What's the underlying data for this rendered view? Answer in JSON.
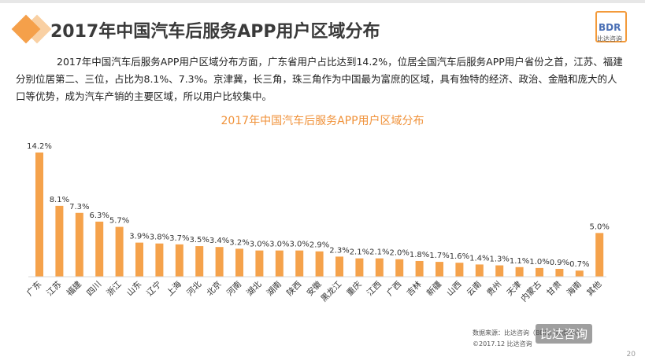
{
  "header": {
    "title": "2017年中国汽车后服务APP用户区域分布",
    "logo_text": "BDR",
    "logo_sub": "比达咨询"
  },
  "paragraph": "2017年中国汽车后服务APP用户区域分布方面，广东省用户占比达到14.2%，位居全国汽车后服务APP用户省份之首，江苏、福建分别位居第二、三位，占比为8.1%、7.3%。京津冀，长三角，珠三角作为中国最为富庶的区域，具有独特的经济、政治、金融和庞大的人口等优势，成为汽车产销的主要区域，所以用户比较集中。",
  "chart_data": {
    "type": "bar",
    "title": "2017年中国汽车后服务APP用户区域分布",
    "categories": [
      "广东",
      "江苏",
      "福建",
      "四川",
      "浙江",
      "山东",
      "辽宁",
      "上海",
      "河北",
      "北京",
      "河南",
      "湖北",
      "湖南",
      "陕西",
      "安徽",
      "黑龙江",
      "重庆",
      "江西",
      "广西",
      "吉林",
      "新疆",
      "山西",
      "云南",
      "贵州",
      "天津",
      "内蒙古",
      "甘肃",
      "海南",
      "其他"
    ],
    "values": [
      14.2,
      8.1,
      7.3,
      6.3,
      5.7,
      3.9,
      3.8,
      3.7,
      3.5,
      3.4,
      3.2,
      3.0,
      3.0,
      3.0,
      2.9,
      2.3,
      2.1,
      2.1,
      2.0,
      1.8,
      1.7,
      1.6,
      1.4,
      1.3,
      1.1,
      1.0,
      0.9,
      0.7,
      5.0
    ],
    "labels": [
      "14.2%",
      "8.1%",
      "7.3%",
      "6.3%",
      "5.7%",
      "3.9%",
      "3.8%",
      "3.7%",
      "3.5%",
      "3.4%",
      "3.2%",
      "3.0%",
      "3.0%",
      "3.0%",
      "2.9%",
      "2.3%",
      "2.1%",
      "2.1%",
      "2.0%",
      "1.8%",
      "1.7%",
      "1.6%",
      "1.4%",
      "1.3%",
      "1.1%",
      "1.0%",
      "0.9%",
      "0.7%",
      "5.0%"
    ],
    "ylim": [
      0,
      14.2
    ],
    "xlabel": "",
    "ylabel": "",
    "grid": false,
    "bar_color": "#f5a24b"
  },
  "footer": {
    "source": "数据来源：比达咨询（BDR）数据中心",
    "copyright": "©2017.12 比达咨询",
    "watermark": "比达咨询",
    "page": "20"
  }
}
